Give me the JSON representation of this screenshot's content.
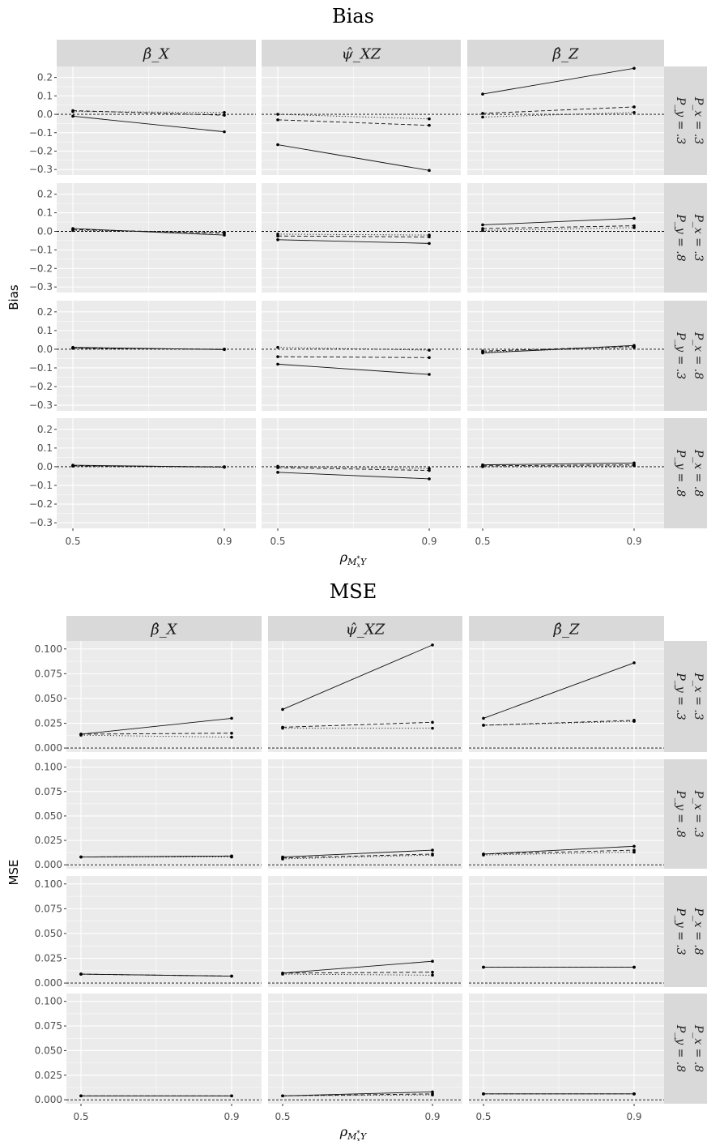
{
  "chart_data": [
    {
      "type": "line",
      "title": "Bias",
      "ylabel": "Bias",
      "xlabel": "ρ_{M*_x Y}",
      "x": [
        0.5,
        0.9
      ],
      "x_tick_labels": [
        "0.5",
        "0.9"
      ],
      "ylim": [
        -0.33,
        0.26
      ],
      "y_ticks": [
        0.2,
        0.1,
        0.0,
        -0.1,
        -0.2,
        -0.3
      ],
      "y_tick_labels": [
        "0.2",
        "0.1",
        "0.0",
        "−0.1",
        "−0.2",
        "−0.3"
      ],
      "reference_line": 0,
      "col_labels": [
        "β̂_X",
        "ψ̂_XZ",
        "β̂_Z"
      ],
      "row_labels": [
        {
          "px": "P_x = .3",
          "py": "P_y = .3"
        },
        {
          "px": "P_x = .3",
          "py": "P_y = .8"
        },
        {
          "px": "P_x = .8",
          "py": "P_y = .3"
        },
        {
          "px": "P_x = .8",
          "py": "P_y = .8"
        }
      ],
      "grid": true,
      "panels": [
        [
          {
            "series": [
              {
                "style": "solid",
                "values": [
                  -0.01,
                  -0.095
                ]
              },
              {
                "style": "dashed",
                "values": [
                  0.02,
                  -0.005
                ]
              },
              {
                "style": "dotted",
                "values": [
                  0.015,
                  0.01
                ]
              }
            ]
          },
          {
            "series": [
              {
                "style": "solid",
                "values": [
                  -0.165,
                  -0.305
                ]
              },
              {
                "style": "dashed",
                "values": [
                  -0.03,
                  -0.06
                ]
              },
              {
                "style": "dotted",
                "values": [
                  0.0,
                  -0.025
                ]
              }
            ]
          },
          {
            "series": [
              {
                "style": "solid",
                "values": [
                  0.11,
                  0.25
                ]
              },
              {
                "style": "dashed",
                "values": [
                  0.005,
                  0.04
                ]
              },
              {
                "style": "dotted",
                "values": [
                  -0.015,
                  0.01
                ]
              }
            ]
          }
        ],
        [
          {
            "series": [
              {
                "style": "solid",
                "values": [
                  0.015,
                  -0.02
                ]
              },
              {
                "style": "dashed",
                "values": [
                  0.01,
                  -0.01
                ]
              },
              {
                "style": "dotted",
                "values": [
                  0.005,
                  -0.005
                ]
              }
            ]
          },
          {
            "series": [
              {
                "style": "solid",
                "values": [
                  -0.045,
                  -0.065
                ]
              },
              {
                "style": "dashed",
                "values": [
                  -0.025,
                  -0.03
                ]
              },
              {
                "style": "dotted",
                "values": [
                  -0.015,
                  -0.02
                ]
              }
            ]
          },
          {
            "series": [
              {
                "style": "solid",
                "values": [
                  0.035,
                  0.07
                ]
              },
              {
                "style": "dashed",
                "values": [
                  0.015,
                  0.03
                ]
              },
              {
                "style": "dotted",
                "values": [
                  0.005,
                  0.02
                ]
              }
            ]
          }
        ],
        [
          {
            "series": [
              {
                "style": "solid",
                "values": [
                  0.01,
                  -0.002
                ]
              },
              {
                "style": "dashed",
                "values": [
                  0.005,
                  0.0
                ]
              },
              {
                "style": "dotted",
                "values": [
                  0.005,
                  0.0
                ]
              }
            ]
          },
          {
            "series": [
              {
                "style": "solid",
                "values": [
                  -0.08,
                  -0.135
                ]
              },
              {
                "style": "dashed",
                "values": [
                  -0.04,
                  -0.045
                ]
              },
              {
                "style": "dotted",
                "values": [
                  0.01,
                  -0.005
                ]
              }
            ]
          },
          {
            "series": [
              {
                "style": "solid",
                "values": [
                  -0.02,
                  0.02
                ]
              },
              {
                "style": "dashed",
                "values": [
                  -0.01,
                  0.015
                ]
              },
              {
                "style": "dotted",
                "values": [
                  -0.015,
                  0.01
                ]
              }
            ]
          }
        ],
        [
          {
            "series": [
              {
                "style": "solid",
                "values": [
                  0.008,
                  -0.002
                ]
              },
              {
                "style": "dashed",
                "values": [
                  0.005,
                  0.0
                ]
              },
              {
                "style": "dotted",
                "values": [
                  0.003,
                  -0.003
                ]
              }
            ]
          },
          {
            "series": [
              {
                "style": "solid",
                "values": [
                  -0.03,
                  -0.065
                ]
              },
              {
                "style": "dashed",
                "values": [
                  -0.005,
                  -0.02
                ]
              },
              {
                "style": "dotted",
                "values": [
                  0.002,
                  -0.01
                ]
              }
            ]
          },
          {
            "series": [
              {
                "style": "solid",
                "values": [
                  0.01,
                  0.02
                ]
              },
              {
                "style": "dashed",
                "values": [
                  0.005,
                  0.01
                ]
              },
              {
                "style": "dotted",
                "values": [
                  0.0,
                  0.005
                ]
              }
            ]
          }
        ]
      ]
    },
    {
      "type": "line",
      "title": "MSE",
      "ylabel": "MSE",
      "xlabel": "ρ_{M*_x Y}",
      "x": [
        0.5,
        0.9
      ],
      "x_tick_labels": [
        "0.5",
        "0.9"
      ],
      "ylim": [
        -0.004,
        0.108
      ],
      "y_ticks": [
        0.1,
        0.075,
        0.05,
        0.025,
        0.0
      ],
      "y_tick_labels": [
        "0.100",
        "0.075",
        "0.050",
        "0.025",
        "0.000"
      ],
      "reference_line": 0,
      "col_labels": [
        "β̂_X",
        "ψ̂_XZ",
        "β̂_Z"
      ],
      "row_labels": [
        {
          "px": "P_x = .3",
          "py": "P_y = .3"
        },
        {
          "px": "P_x = .3",
          "py": "P_y = .8"
        },
        {
          "px": "P_x = .8",
          "py": "P_y = .3"
        },
        {
          "px": "P_x = .8",
          "py": "P_y = .8"
        }
      ],
      "grid": true,
      "panels": [
        [
          {
            "series": [
              {
                "style": "solid",
                "values": [
                  0.014,
                  0.03
                ]
              },
              {
                "style": "dashed",
                "values": [
                  0.014,
                  0.015
                ]
              },
              {
                "style": "dotted",
                "values": [
                  0.013,
                  0.011
                ]
              }
            ]
          },
          {
            "series": [
              {
                "style": "solid",
                "values": [
                  0.039,
                  0.104
                ]
              },
              {
                "style": "dashed",
                "values": [
                  0.021,
                  0.026
                ]
              },
              {
                "style": "dotted",
                "values": [
                  0.02,
                  0.02
                ]
              }
            ]
          },
          {
            "series": [
              {
                "style": "solid",
                "values": [
                  0.03,
                  0.086
                ]
              },
              {
                "style": "dashed",
                "values": [
                  0.023,
                  0.028
                ]
              },
              {
                "style": "dotted",
                "values": [
                  0.023,
                  0.027
                ]
              }
            ]
          }
        ],
        [
          {
            "series": [
              {
                "style": "solid",
                "values": [
                  0.008,
                  0.009
                ]
              },
              {
                "style": "dashed",
                "values": [
                  0.008,
                  0.009
                ]
              },
              {
                "style": "dotted",
                "values": [
                  0.008,
                  0.008
                ]
              }
            ]
          },
          {
            "series": [
              {
                "style": "solid",
                "values": [
                  0.008,
                  0.015
                ]
              },
              {
                "style": "dashed",
                "values": [
                  0.007,
                  0.011
                ]
              },
              {
                "style": "dotted",
                "values": [
                  0.006,
                  0.01
                ]
              }
            ]
          },
          {
            "series": [
              {
                "style": "solid",
                "values": [
                  0.011,
                  0.019
                ]
              },
              {
                "style": "dashed",
                "values": [
                  0.011,
                  0.015
                ]
              },
              {
                "style": "dotted",
                "values": [
                  0.01,
                  0.013
                ]
              }
            ]
          }
        ],
        [
          {
            "series": [
              {
                "style": "solid",
                "values": [
                  0.009,
                  0.007
                ]
              },
              {
                "style": "dashed",
                "values": [
                  0.009,
                  0.007
                ]
              },
              {
                "style": "dotted",
                "values": [
                  0.009,
                  0.007
                ]
              }
            ]
          },
          {
            "series": [
              {
                "style": "solid",
                "values": [
                  0.01,
                  0.022
                ]
              },
              {
                "style": "dashed",
                "values": [
                  0.01,
                  0.011
                ]
              },
              {
                "style": "dotted",
                "values": [
                  0.009,
                  0.008
                ]
              }
            ]
          },
          {
            "series": [
              {
                "style": "solid",
                "values": [
                  0.016,
                  0.016
                ]
              },
              {
                "style": "dashed",
                "values": [
                  0.016,
                  0.016
                ]
              },
              {
                "style": "dotted",
                "values": [
                  0.016,
                  0.016
                ]
              }
            ]
          }
        ],
        [
          {
            "series": [
              {
                "style": "solid",
                "values": [
                  0.004,
                  0.004
                ]
              },
              {
                "style": "dashed",
                "values": [
                  0.004,
                  0.004
                ]
              },
              {
                "style": "dotted",
                "values": [
                  0.004,
                  0.004
                ]
              }
            ]
          },
          {
            "series": [
              {
                "style": "solid",
                "values": [
                  0.004,
                  0.008
                ]
              },
              {
                "style": "dashed",
                "values": [
                  0.004,
                  0.006
                ]
              },
              {
                "style": "dotted",
                "values": [
                  0.004,
                  0.005
                ]
              }
            ]
          },
          {
            "series": [
              {
                "style": "solid",
                "values": [
                  0.006,
                  0.006
                ]
              },
              {
                "style": "dashed",
                "values": [
                  0.006,
                  0.006
                ]
              },
              {
                "style": "dotted",
                "values": [
                  0.006,
                  0.006
                ]
              }
            ]
          }
        ]
      ]
    }
  ]
}
